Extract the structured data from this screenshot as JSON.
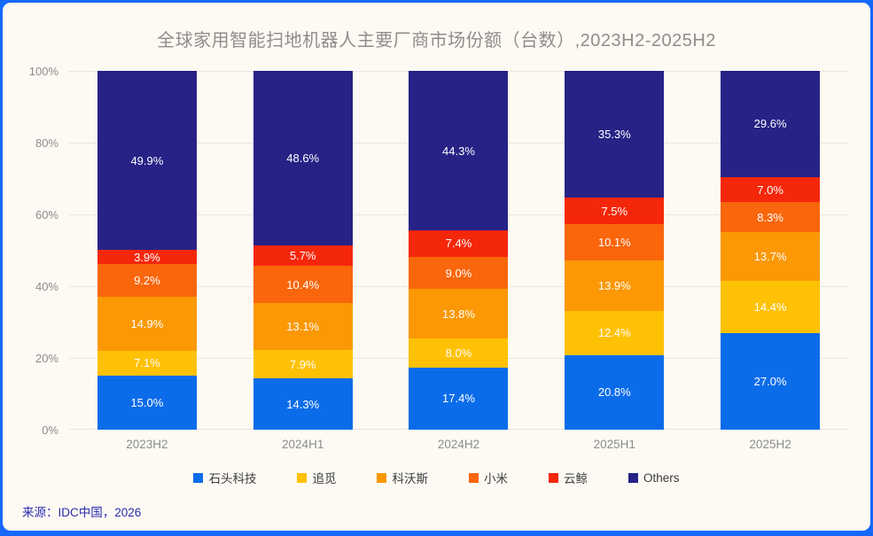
{
  "title": "全球家用智能扫地机器人主要厂商市场份额（台数）,2023H2-2025H2",
  "source": "来源：IDC中国，2026",
  "colors": {
    "frame_border": "#1668FA",
    "card_background": "#FDFAF4",
    "gridline": "#E8E6E2",
    "axis_text": "#8C8C8C",
    "title_text": "#908D8A",
    "legend_text": "#3D3D3D",
    "source_text": "#2C2CAC",
    "segment_label_text": "#FFFFFF"
  },
  "chart_data": {
    "type": "bar",
    "stacked": true,
    "title": "全球家用智能扫地机器人主要厂商市场份额（台数）,2023H2-2025H2",
    "categories": [
      "2023H2",
      "2024H1",
      "2024H2",
      "2025H1",
      "2025H2"
    ],
    "series": [
      {
        "name": "石头科技",
        "color": "#0B6CE9",
        "values": [
          15.0,
          14.3,
          17.4,
          20.8,
          27.0
        ]
      },
      {
        "name": "追觅",
        "color": "#FFC104",
        "values": [
          7.1,
          7.9,
          8.0,
          12.4,
          14.4
        ]
      },
      {
        "name": "科沃斯",
        "color": "#FB9804",
        "values": [
          14.9,
          13.1,
          13.8,
          13.9,
          13.7
        ]
      },
      {
        "name": "小米",
        "color": "#F9660B",
        "values": [
          9.2,
          10.4,
          9.0,
          10.1,
          8.3
        ]
      },
      {
        "name": "云鲸",
        "color": "#F5270B",
        "values": [
          3.9,
          5.7,
          7.4,
          7.5,
          7.0
        ]
      },
      {
        "name": "Others",
        "color": "#262286",
        "values": [
          49.9,
          48.6,
          44.3,
          35.3,
          29.6
        ]
      }
    ],
    "xlabel": "",
    "ylabel": "",
    "ylim": [
      0,
      100
    ],
    "yticks": [
      "0%",
      "20%",
      "40%",
      "60%",
      "80%",
      "100%"
    ],
    "grid": true,
    "legend_position": "bottom",
    "value_labels": "inside, formatted as one-decimal percent, white text"
  }
}
